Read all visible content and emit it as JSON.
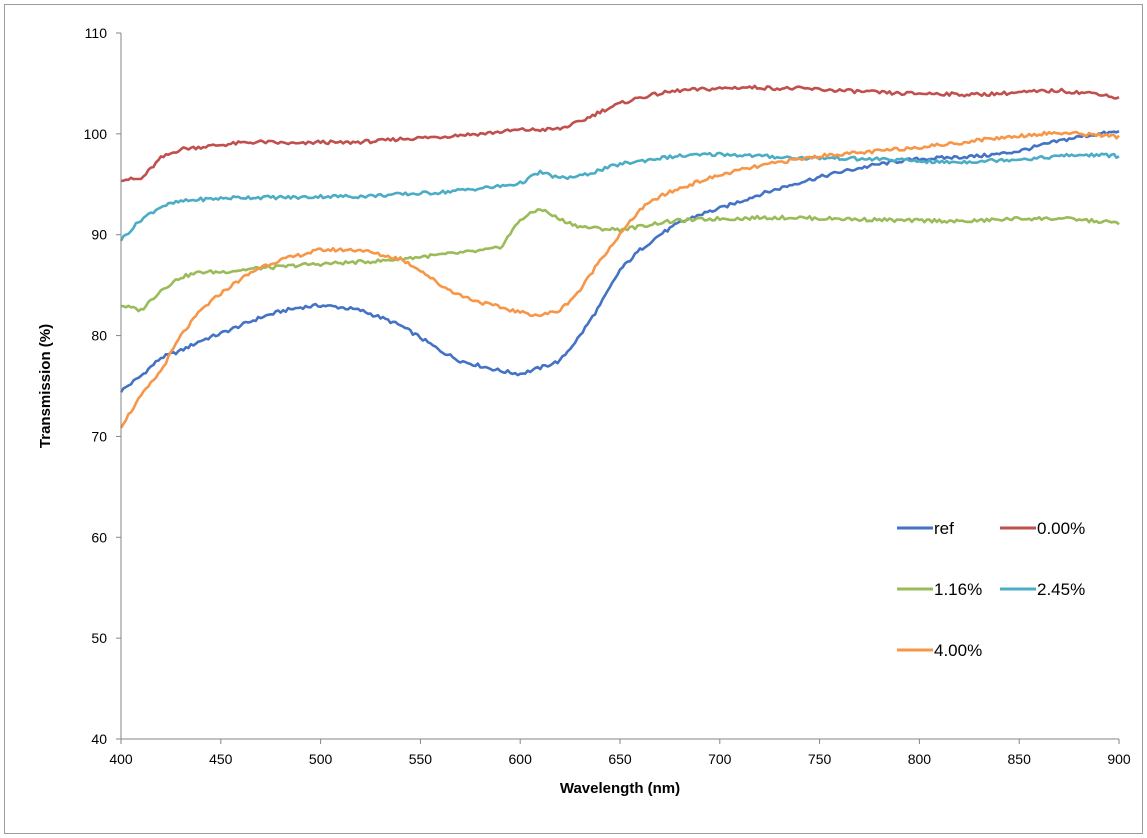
{
  "chart_data": {
    "type": "line",
    "title": "",
    "xlabel": "Wavelength (nm)",
    "ylabel": "Transmission (%)",
    "xlim": [
      400,
      900
    ],
    "ylim": [
      40,
      110
    ],
    "xticks": [
      400,
      450,
      500,
      550,
      600,
      650,
      700,
      750,
      800,
      850,
      900
    ],
    "yticks": [
      40,
      50,
      60,
      70,
      80,
      90,
      100,
      110
    ],
    "grid": false,
    "legend_position": "bottom-right",
    "series": [
      {
        "name": "ref",
        "color": "#4472C4",
        "x": [
          400,
          410,
          420,
          430,
          440,
          450,
          460,
          470,
          480,
          490,
          500,
          510,
          520,
          530,
          540,
          550,
          560,
          570,
          580,
          590,
          600,
          610,
          620,
          630,
          640,
          650,
          660,
          670,
          680,
          690,
          700,
          710,
          720,
          730,
          740,
          750,
          760,
          770,
          780,
          790,
          800,
          810,
          820,
          830,
          840,
          850,
          860,
          870,
          880,
          890,
          900
        ],
        "y": [
          74.5,
          76.0,
          77.8,
          78.5,
          79.5,
          80.2,
          81.0,
          81.8,
          82.4,
          82.8,
          83.0,
          82.8,
          82.5,
          81.8,
          81.0,
          79.8,
          78.5,
          77.5,
          77.0,
          76.5,
          76.2,
          76.8,
          77.5,
          80.0,
          83.0,
          86.5,
          88.5,
          90.0,
          91.2,
          92.0,
          92.6,
          93.3,
          94.0,
          94.6,
          95.2,
          95.7,
          96.2,
          96.6,
          97.0,
          97.3,
          97.5,
          97.6,
          97.7,
          97.8,
          98.0,
          98.3,
          98.8,
          99.3,
          99.7,
          100.0,
          100.2
        ]
      },
      {
        "name": "0.00%",
        "color": "#C0504D",
        "x": [
          400,
          410,
          420,
          430,
          440,
          450,
          460,
          470,
          480,
          490,
          500,
          510,
          520,
          530,
          540,
          550,
          560,
          570,
          580,
          590,
          600,
          610,
          620,
          630,
          640,
          650,
          660,
          670,
          680,
          690,
          700,
          710,
          720,
          730,
          740,
          750,
          760,
          770,
          780,
          790,
          800,
          810,
          820,
          830,
          840,
          850,
          860,
          870,
          880,
          890,
          900
        ],
        "y": [
          95.5,
          95.5,
          97.6,
          98.5,
          98.7,
          98.9,
          99.1,
          99.2,
          99.1,
          99.0,
          99.2,
          99.1,
          99.2,
          99.3,
          99.5,
          99.6,
          99.7,
          99.9,
          100.0,
          100.2,
          100.4,
          100.4,
          100.5,
          101.2,
          102.2,
          103.0,
          103.6,
          104.0,
          104.3,
          104.4,
          104.5,
          104.6,
          104.6,
          104.5,
          104.5,
          104.4,
          104.3,
          104.2,
          104.1,
          104.0,
          104.0,
          104.0,
          103.9,
          103.9,
          104.0,
          104.1,
          104.2,
          104.3,
          104.1,
          104.0,
          103.5
        ]
      },
      {
        "name": "1.16%",
        "color": "#9BBB59",
        "x": [
          400,
          410,
          420,
          430,
          440,
          450,
          460,
          470,
          480,
          490,
          500,
          510,
          520,
          530,
          540,
          550,
          560,
          570,
          580,
          590,
          600,
          610,
          620,
          630,
          640,
          650,
          660,
          670,
          680,
          690,
          700,
          710,
          720,
          730,
          740,
          750,
          760,
          770,
          780,
          790,
          800,
          810,
          820,
          830,
          840,
          850,
          860,
          870,
          880,
          890,
          900
        ],
        "y": [
          83.0,
          82.5,
          84.5,
          85.8,
          86.3,
          86.3,
          86.5,
          86.7,
          86.8,
          87.0,
          87.1,
          87.2,
          87.3,
          87.4,
          87.6,
          87.8,
          88.0,
          88.2,
          88.4,
          88.7,
          91.5,
          92.6,
          91.5,
          90.8,
          90.6,
          90.5,
          90.8,
          91.2,
          91.4,
          91.5,
          91.6,
          91.6,
          91.7,
          91.7,
          91.7,
          91.6,
          91.6,
          91.5,
          91.5,
          91.4,
          91.4,
          91.4,
          91.3,
          91.4,
          91.5,
          91.6,
          91.6,
          91.6,
          91.5,
          91.3,
          91.2
        ]
      },
      {
        "name": "2.45%",
        "color": "#4BACC6",
        "x": [
          400,
          410,
          420,
          430,
          440,
          450,
          460,
          470,
          480,
          490,
          500,
          510,
          520,
          530,
          540,
          550,
          560,
          570,
          580,
          590,
          600,
          610,
          620,
          630,
          640,
          650,
          660,
          670,
          680,
          690,
          700,
          710,
          720,
          730,
          740,
          750,
          760,
          770,
          780,
          790,
          800,
          810,
          820,
          830,
          840,
          850,
          860,
          870,
          880,
          890,
          900
        ],
        "y": [
          89.5,
          91.5,
          92.8,
          93.3,
          93.5,
          93.6,
          93.7,
          93.7,
          93.7,
          93.7,
          93.8,
          93.8,
          93.8,
          93.9,
          94.0,
          94.1,
          94.2,
          94.4,
          94.6,
          94.8,
          95.1,
          96.2,
          95.6,
          95.8,
          96.4,
          97.0,
          97.3,
          97.6,
          97.8,
          97.9,
          98.0,
          97.9,
          97.8,
          97.7,
          97.6,
          97.6,
          97.6,
          97.5,
          97.5,
          97.4,
          97.3,
          97.2,
          97.2,
          97.3,
          97.4,
          97.5,
          97.6,
          97.8,
          97.9,
          97.9,
          97.8
        ]
      },
      {
        "name": "4.00%",
        "color": "#F79646",
        "x": [
          400,
          410,
          420,
          430,
          440,
          450,
          460,
          470,
          480,
          490,
          500,
          510,
          520,
          530,
          540,
          550,
          560,
          570,
          580,
          590,
          600,
          610,
          620,
          630,
          640,
          650,
          660,
          670,
          680,
          690,
          700,
          710,
          720,
          730,
          740,
          750,
          760,
          770,
          780,
          790,
          800,
          810,
          820,
          830,
          840,
          850,
          860,
          870,
          880,
          890,
          900
        ],
        "y": [
          71.0,
          74.0,
          76.5,
          80.0,
          82.5,
          84.2,
          85.6,
          86.8,
          87.5,
          88.0,
          88.5,
          88.5,
          88.5,
          88.0,
          87.6,
          86.5,
          85.0,
          84.0,
          83.3,
          82.8,
          82.3,
          82.0,
          82.5,
          84.5,
          87.5,
          90.0,
          92.5,
          93.8,
          94.6,
          95.3,
          95.9,
          96.4,
          96.8,
          97.2,
          97.5,
          97.8,
          98.0,
          98.1,
          98.3,
          98.5,
          98.7,
          98.9,
          99.1,
          99.4,
          99.6,
          99.8,
          100.0,
          100.1,
          100.0,
          99.9,
          99.7
        ]
      }
    ]
  }
}
